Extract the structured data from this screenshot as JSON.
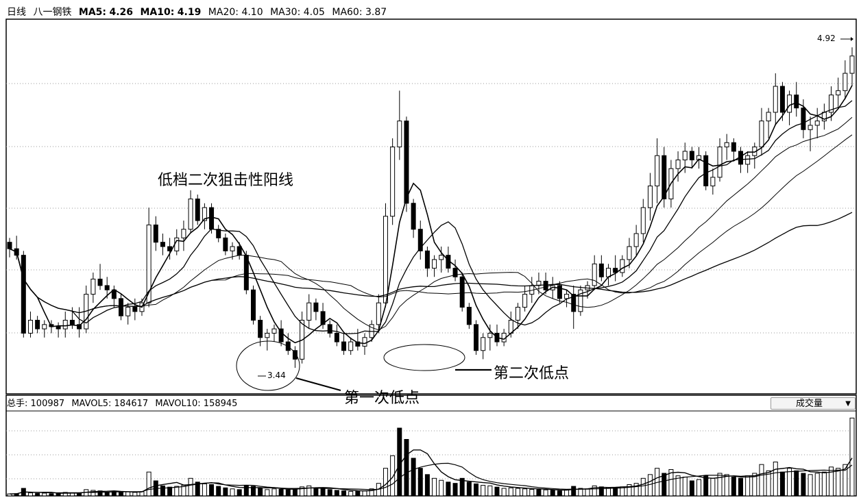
{
  "header": {
    "period": "日线",
    "stock_name": "八一钢铁",
    "ma": [
      {
        "label": "MA5",
        "value": "4.26"
      },
      {
        "label": "MA10",
        "value": "4.19"
      },
      {
        "label": "MA20",
        "value": "4.10"
      },
      {
        "label": "MA30",
        "value": "4.05"
      },
      {
        "label": "MA60",
        "value": "3.87"
      }
    ]
  },
  "volume_header": {
    "total_label": "总手",
    "total_value": "100987",
    "mavol5_label": "MAVOL5",
    "mavol5_value": "184617",
    "mavol10_label": "MAVOL10",
    "mavol10_value": "158945"
  },
  "indicator_selector": {
    "value": "成交量",
    "arrow_icon": "triangle-down-icon"
  },
  "annotations": {
    "title_note": "低档二次狙击性阳线",
    "first_low": "第一次低点",
    "second_low": "第二次低点",
    "low_price_label": "3.44",
    "high_price_label": "4.92"
  },
  "colors": {
    "up": "#000000",
    "down": "#000000",
    "background": "#ffffff",
    "grid": "#999999"
  },
  "chart_data": {
    "type": "candlestick",
    "price_range": [
      3.32,
      5.05
    ],
    "grid": "dotted",
    "candles": [
      [
        4.02,
        4.04,
        3.95,
        3.99
      ],
      [
        3.99,
        4.05,
        3.94,
        3.96
      ],
      [
        3.96,
        3.98,
        3.58,
        3.6
      ],
      [
        3.6,
        3.7,
        3.58,
        3.66
      ],
      [
        3.66,
        3.68,
        3.6,
        3.62
      ],
      [
        3.62,
        3.66,
        3.58,
        3.64
      ],
      [
        3.64,
        3.66,
        3.6,
        3.63
      ],
      [
        3.63,
        3.65,
        3.58,
        3.62
      ],
      [
        3.62,
        3.7,
        3.58,
        3.66
      ],
      [
        3.66,
        3.72,
        3.62,
        3.64
      ],
      [
        3.64,
        3.72,
        3.58,
        3.62
      ],
      [
        3.62,
        3.82,
        3.6,
        3.78
      ],
      [
        3.78,
        3.88,
        3.74,
        3.85
      ],
      [
        3.85,
        3.92,
        3.8,
        3.82
      ],
      [
        3.82,
        3.86,
        3.76,
        3.8
      ],
      [
        3.8,
        3.82,
        3.72,
        3.76
      ],
      [
        3.76,
        3.78,
        3.66,
        3.68
      ],
      [
        3.68,
        3.74,
        3.64,
        3.72
      ],
      [
        3.72,
        3.76,
        3.66,
        3.7
      ],
      [
        3.7,
        3.76,
        3.68,
        3.74
      ],
      [
        3.74,
        4.18,
        3.72,
        4.1
      ],
      [
        4.1,
        4.14,
        3.98,
        4.02
      ],
      [
        4.02,
        4.06,
        3.96,
        4.0
      ],
      [
        4.0,
        4.04,
        3.94,
        3.98
      ],
      [
        3.98,
        4.08,
        3.96,
        4.04
      ],
      [
        4.04,
        4.12,
        3.98,
        4.08
      ],
      [
        4.08,
        4.26,
        4.06,
        4.22
      ],
      [
        4.22,
        4.24,
        4.1,
        4.12
      ],
      [
        4.12,
        4.2,
        4.08,
        4.18
      ],
      [
        4.18,
        4.2,
        4.06,
        4.08
      ],
      [
        4.08,
        4.1,
        4.02,
        4.04
      ],
      [
        4.04,
        4.06,
        3.96,
        3.98
      ],
      [
        3.98,
        4.02,
        3.94,
        4.0
      ],
      [
        4.0,
        4.02,
        3.94,
        3.96
      ],
      [
        3.96,
        3.98,
        3.78,
        3.8
      ],
      [
        3.8,
        3.82,
        3.64,
        3.66
      ],
      [
        3.66,
        3.68,
        3.54,
        3.58
      ],
      [
        3.58,
        3.62,
        3.52,
        3.6
      ],
      [
        3.6,
        3.64,
        3.56,
        3.62
      ],
      [
        3.62,
        3.66,
        3.54,
        3.56
      ],
      [
        3.56,
        3.6,
        3.5,
        3.52
      ],
      [
        3.52,
        3.54,
        3.44,
        3.48
      ],
      [
        3.48,
        3.7,
        3.46,
        3.66
      ],
      [
        3.66,
        3.78,
        3.62,
        3.74
      ],
      [
        3.74,
        3.76,
        3.66,
        3.7
      ],
      [
        3.7,
        3.74,
        3.62,
        3.64
      ],
      [
        3.64,
        3.66,
        3.58,
        3.6
      ],
      [
        3.6,
        3.64,
        3.54,
        3.56
      ],
      [
        3.56,
        3.6,
        3.5,
        3.52
      ],
      [
        3.52,
        3.58,
        3.5,
        3.56
      ],
      [
        3.56,
        3.62,
        3.52,
        3.54
      ],
      [
        3.54,
        3.6,
        3.5,
        3.58
      ],
      [
        3.58,
        3.66,
        3.56,
        3.64
      ],
      [
        3.64,
        3.78,
        3.6,
        3.74
      ],
      [
        3.74,
        4.2,
        3.72,
        4.14
      ],
      [
        4.14,
        4.5,
        4.1,
        4.46
      ],
      [
        4.46,
        4.72,
        4.4,
        4.58
      ],
      [
        4.58,
        4.6,
        4.16,
        4.2
      ],
      [
        4.2,
        4.22,
        4.04,
        4.08
      ],
      [
        4.08,
        4.12,
        3.94,
        3.98
      ],
      [
        3.98,
        4.0,
        3.86,
        3.9
      ],
      [
        3.9,
        3.96,
        3.86,
        3.94
      ],
      [
        3.94,
        4.0,
        3.88,
        3.96
      ],
      [
        3.96,
        4.0,
        3.88,
        3.9
      ],
      [
        3.9,
        3.94,
        3.84,
        3.86
      ],
      [
        3.86,
        3.88,
        3.7,
        3.72
      ],
      [
        3.72,
        3.74,
        3.62,
        3.64
      ],
      [
        3.64,
        3.66,
        3.5,
        3.52
      ],
      [
        3.52,
        3.6,
        3.48,
        3.58
      ],
      [
        3.58,
        3.64,
        3.52,
        3.6
      ],
      [
        3.6,
        3.64,
        3.54,
        3.56
      ],
      [
        3.56,
        3.62,
        3.54,
        3.6
      ],
      [
        3.6,
        3.7,
        3.58,
        3.66
      ],
      [
        3.66,
        3.74,
        3.62,
        3.72
      ],
      [
        3.72,
        3.82,
        3.7,
        3.78
      ],
      [
        3.78,
        3.86,
        3.74,
        3.82
      ],
      [
        3.82,
        3.88,
        3.78,
        3.84
      ],
      [
        3.84,
        3.88,
        3.78,
        3.8
      ],
      [
        3.8,
        3.86,
        3.76,
        3.82
      ],
      [
        3.82,
        3.84,
        3.74,
        3.76
      ],
      [
        3.76,
        3.8,
        3.72,
        3.78
      ],
      [
        3.78,
        3.82,
        3.62,
        3.7
      ],
      [
        3.7,
        3.82,
        3.68,
        3.8
      ],
      [
        3.8,
        3.84,
        3.76,
        3.82
      ],
      [
        3.82,
        3.96,
        3.8,
        3.92
      ],
      [
        3.92,
        3.96,
        3.84,
        3.86
      ],
      [
        3.86,
        3.92,
        3.82,
        3.9
      ],
      [
        3.9,
        3.96,
        3.84,
        3.88
      ],
      [
        3.88,
        3.96,
        3.86,
        3.94
      ],
      [
        3.94,
        4.04,
        3.9,
        4.0
      ],
      [
        4.0,
        4.1,
        3.96,
        4.06
      ],
      [
        4.06,
        4.22,
        4.02,
        4.18
      ],
      [
        4.18,
        4.34,
        4.12,
        4.28
      ],
      [
        4.28,
        4.5,
        4.2,
        4.42
      ],
      [
        4.42,
        4.46,
        4.18,
        4.22
      ],
      [
        4.22,
        4.4,
        4.18,
        4.36
      ],
      [
        4.36,
        4.44,
        4.3,
        4.4
      ],
      [
        4.4,
        4.48,
        4.34,
        4.44
      ],
      [
        4.44,
        4.46,
        4.36,
        4.4
      ],
      [
        4.4,
        4.46,
        4.36,
        4.42
      ],
      [
        4.42,
        4.44,
        4.26,
        4.28
      ],
      [
        4.28,
        4.36,
        4.24,
        4.32
      ],
      [
        4.32,
        4.5,
        4.3,
        4.46
      ],
      [
        4.46,
        4.52,
        4.4,
        4.48
      ],
      [
        4.48,
        4.5,
        4.4,
        4.44
      ],
      [
        4.44,
        4.46,
        4.34,
        4.38
      ],
      [
        4.38,
        4.44,
        4.34,
        4.42
      ],
      [
        4.42,
        4.48,
        4.36,
        4.46
      ],
      [
        4.46,
        4.64,
        4.42,
        4.58
      ],
      [
        4.58,
        4.64,
        4.5,
        4.62
      ],
      [
        4.62,
        4.8,
        4.56,
        4.74
      ],
      [
        4.74,
        4.76,
        4.58,
        4.62
      ],
      [
        4.62,
        4.72,
        4.56,
        4.7
      ],
      [
        4.7,
        4.76,
        4.6,
        4.64
      ],
      [
        4.64,
        4.68,
        4.5,
        4.54
      ],
      [
        4.54,
        4.6,
        4.44,
        4.56
      ],
      [
        4.56,
        4.64,
        4.5,
        4.58
      ],
      [
        4.58,
        4.66,
        4.54,
        4.62
      ],
      [
        4.62,
        4.74,
        4.58,
        4.7
      ],
      [
        4.7,
        4.78,
        4.64,
        4.72
      ],
      [
        4.72,
        4.86,
        4.68,
        4.8
      ],
      [
        4.8,
        4.92,
        4.74,
        4.88
      ]
    ],
    "volume_range": [
      0,
      330000
    ],
    "volumes": [
      [
        8000,
        0
      ],
      [
        9000,
        1
      ],
      [
        30000,
        1
      ],
      [
        12000,
        0
      ],
      [
        10000,
        1
      ],
      [
        11000,
        0
      ],
      [
        9000,
        1
      ],
      [
        10000,
        1
      ],
      [
        14000,
        0
      ],
      [
        12000,
        0
      ],
      [
        11000,
        1
      ],
      [
        25000,
        0
      ],
      [
        22000,
        0
      ],
      [
        20000,
        1
      ],
      [
        15000,
        1
      ],
      [
        18000,
        1
      ],
      [
        14000,
        1
      ],
      [
        16000,
        0
      ],
      [
        14000,
        0
      ],
      [
        17000,
        0
      ],
      [
        95000,
        0
      ],
      [
        60000,
        1
      ],
      [
        40000,
        1
      ],
      [
        35000,
        1
      ],
      [
        38000,
        0
      ],
      [
        42000,
        0
      ],
      [
        70000,
        0
      ],
      [
        55000,
        1
      ],
      [
        48000,
        0
      ],
      [
        45000,
        1
      ],
      [
        38000,
        1
      ],
      [
        32000,
        1
      ],
      [
        28000,
        0
      ],
      [
        25000,
        1
      ],
      [
        42000,
        1
      ],
      [
        38000,
        1
      ],
      [
        30000,
        1
      ],
      [
        25000,
        0
      ],
      [
        28000,
        0
      ],
      [
        26000,
        1
      ],
      [
        24000,
        1
      ],
      [
        30000,
        1
      ],
      [
        36000,
        0
      ],
      [
        40000,
        0
      ],
      [
        32000,
        1
      ],
      [
        28000,
        1
      ],
      [
        25000,
        1
      ],
      [
        22000,
        1
      ],
      [
        20000,
        1
      ],
      [
        18000,
        0
      ],
      [
        19000,
        1
      ],
      [
        20000,
        0
      ],
      [
        28000,
        0
      ],
      [
        50000,
        0
      ],
      [
        110000,
        0
      ],
      [
        160000,
        0
      ],
      [
        270000,
        1
      ],
      [
        225000,
        1
      ],
      [
        150000,
        1
      ],
      [
        110000,
        1
      ],
      [
        85000,
        1
      ],
      [
        70000,
        0
      ],
      [
        62000,
        0
      ],
      [
        55000,
        1
      ],
      [
        50000,
        1
      ],
      [
        70000,
        1
      ],
      [
        55000,
        1
      ],
      [
        48000,
        1
      ],
      [
        42000,
        0
      ],
      [
        40000,
        0
      ],
      [
        35000,
        1
      ],
      [
        30000,
        0
      ],
      [
        32000,
        0
      ],
      [
        30000,
        0
      ],
      [
        28000,
        0
      ],
      [
        26000,
        0
      ],
      [
        25000,
        1
      ],
      [
        24000,
        0
      ],
      [
        22000,
        1
      ],
      [
        20000,
        1
      ],
      [
        25000,
        0
      ],
      [
        38000,
        1
      ],
      [
        30000,
        0
      ],
      [
        28000,
        0
      ],
      [
        40000,
        0
      ],
      [
        36000,
        1
      ],
      [
        34000,
        0
      ],
      [
        32000,
        1
      ],
      [
        36000,
        0
      ],
      [
        45000,
        0
      ],
      [
        50000,
        0
      ],
      [
        70000,
        0
      ],
      [
        85000,
        0
      ],
      [
        110000,
        0
      ],
      [
        90000,
        1
      ],
      [
        105000,
        0
      ],
      [
        80000,
        0
      ],
      [
        75000,
        0
      ],
      [
        60000,
        1
      ],
      [
        65000,
        0
      ],
      [
        80000,
        1
      ],
      [
        70000,
        0
      ],
      [
        90000,
        0
      ],
      [
        85000,
        0
      ],
      [
        75000,
        1
      ],
      [
        70000,
        1
      ],
      [
        80000,
        0
      ],
      [
        90000,
        0
      ],
      [
        125000,
        0
      ],
      [
        100000,
        0
      ],
      [
        135000,
        0
      ],
      [
        95000,
        1
      ],
      [
        110000,
        0
      ],
      [
        100000,
        1
      ],
      [
        90000,
        1
      ],
      [
        85000,
        0
      ],
      [
        90000,
        0
      ],
      [
        95000,
        0
      ],
      [
        115000,
        0
      ],
      [
        110000,
        0
      ],
      [
        125000,
        0
      ],
      [
        310000,
        0
      ]
    ]
  }
}
